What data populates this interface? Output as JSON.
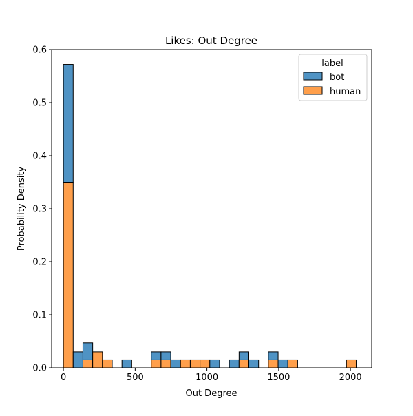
{
  "chart_data": {
    "type": "bar",
    "title": "Likes: Out Degree",
    "xlabel": "Out Degree",
    "ylabel": "Probability Density",
    "xlim": [
      -82,
      2148
    ],
    "ylim": [
      0,
      0.6
    ],
    "xticks": [
      0,
      500,
      1000,
      1500,
      2000
    ],
    "yticks": [
      0.0,
      0.1,
      0.2,
      0.3,
      0.4,
      0.5,
      0.6
    ],
    "grid": false,
    "stacked": true,
    "bin_width": 68,
    "legend": {
      "title": "label",
      "placement": "top-right",
      "entries": [
        "bot",
        "human"
      ]
    },
    "x": [
      0,
      68,
      136,
      204,
      272,
      340,
      408,
      476,
      544,
      612,
      680,
      748,
      816,
      884,
      952,
      1020,
      1088,
      1156,
      1224,
      1292,
      1360,
      1428,
      1496,
      1564,
      1632,
      1700,
      1768,
      1836,
      1904,
      1972
    ],
    "series": [
      {
        "name": "human",
        "color": "#ff9f4b",
        "values": [
          0.35,
          0,
          0.015,
          0.03,
          0.015,
          0,
          0,
          0,
          0,
          0.015,
          0.015,
          0,
          0.015,
          0.015,
          0.015,
          0,
          0,
          0,
          0.015,
          0,
          0,
          0.015,
          0,
          0.015,
          0,
          0,
          0,
          0,
          0,
          0.015
        ]
      },
      {
        "name": "bot",
        "color": "#4f93c4",
        "values": [
          0.222,
          0.03,
          0.032,
          0,
          0,
          0,
          0.015,
          0,
          0,
          0.015,
          0.015,
          0.015,
          0,
          0,
          0,
          0.015,
          0,
          0.015,
          0.015,
          0.015,
          0,
          0.015,
          0.015,
          0,
          0,
          0,
          0,
          0,
          0,
          0
        ]
      }
    ]
  }
}
